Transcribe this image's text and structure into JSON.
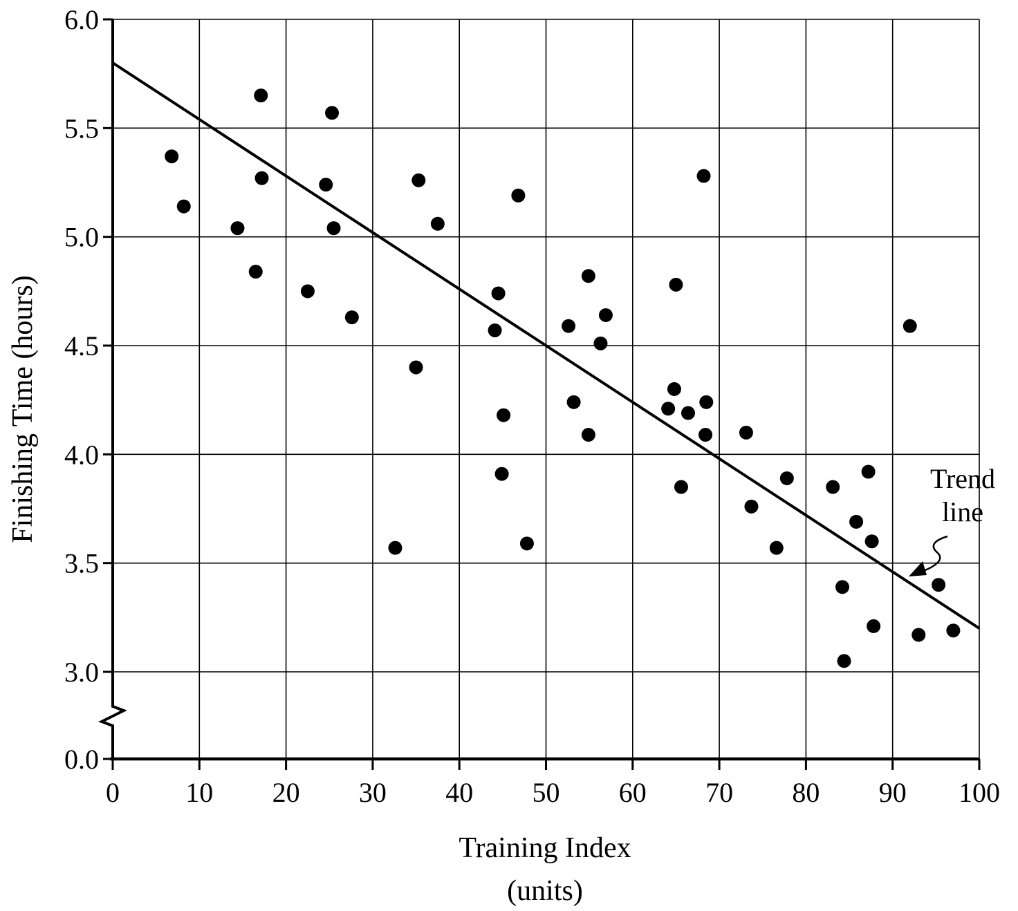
{
  "chart_data": {
    "type": "scatter",
    "xlabel": "Training Index",
    "xlabel_unit": "(units)",
    "ylabel": "Finishing Time (hours)",
    "xlim": [
      0,
      100
    ],
    "ylim": [
      3.0,
      6.0
    ],
    "y_axis_break": true,
    "y_break_bottom_value": 0.0,
    "grid": true,
    "x_ticks": [
      0,
      10,
      20,
      30,
      40,
      50,
      60,
      70,
      80,
      90,
      100
    ],
    "x_tick_labels": [
      "0",
      "10",
      "20",
      "30",
      "40",
      "50",
      "60",
      "70",
      "80",
      "90",
      "100"
    ],
    "y_ticks": [
      3.0,
      3.5,
      4.0,
      4.5,
      5.0,
      5.5,
      6.0
    ],
    "y_tick_labels": [
      "3.0",
      "3.5",
      "4.0",
      "4.5",
      "5.0",
      "5.5",
      "6.0"
    ],
    "y_break_tick_label": "0.0",
    "trend_line": {
      "label_line1": "Trend",
      "label_line2": "line",
      "x": [
        0,
        100
      ],
      "y": [
        5.8,
        3.2
      ]
    },
    "points": [
      [
        6.8,
        5.37
      ],
      [
        8.2,
        5.14
      ],
      [
        14.4,
        5.04
      ],
      [
        16.5,
        4.84
      ],
      [
        17.1,
        5.65
      ],
      [
        17.2,
        5.27
      ],
      [
        22.5,
        4.75
      ],
      [
        24.6,
        5.24
      ],
      [
        25.3,
        5.57
      ],
      [
        25.5,
        5.04
      ],
      [
        27.6,
        4.63
      ],
      [
        32.6,
        3.57
      ],
      [
        35.0,
        4.4
      ],
      [
        35.3,
        5.26
      ],
      [
        37.5,
        5.06
      ],
      [
        44.1,
        4.57
      ],
      [
        44.5,
        4.74
      ],
      [
        44.9,
        3.91
      ],
      [
        45.1,
        4.18
      ],
      [
        46.8,
        5.19
      ],
      [
        47.8,
        3.59
      ],
      [
        52.6,
        4.59
      ],
      [
        53.2,
        4.24
      ],
      [
        54.9,
        4.82
      ],
      [
        54.9,
        4.09
      ],
      [
        56.3,
        4.51
      ],
      [
        56.9,
        4.64
      ],
      [
        64.1,
        4.21
      ],
      [
        64.8,
        4.3
      ],
      [
        65.0,
        4.78
      ],
      [
        65.6,
        3.85
      ],
      [
        66.4,
        4.19
      ],
      [
        68.2,
        5.28
      ],
      [
        68.4,
        4.09
      ],
      [
        68.5,
        4.24
      ],
      [
        73.1,
        4.1
      ],
      [
        73.7,
        3.76
      ],
      [
        76.6,
        3.57
      ],
      [
        77.8,
        3.89
      ],
      [
        83.1,
        3.85
      ],
      [
        84.2,
        3.39
      ],
      [
        84.4,
        3.05
      ],
      [
        85.8,
        3.69
      ],
      [
        87.2,
        3.92
      ],
      [
        87.6,
        3.6
      ],
      [
        87.8,
        3.21
      ],
      [
        92.0,
        4.59
      ],
      [
        93.0,
        3.17
      ],
      [
        95.3,
        3.4
      ],
      [
        97.0,
        3.19
      ]
    ]
  }
}
